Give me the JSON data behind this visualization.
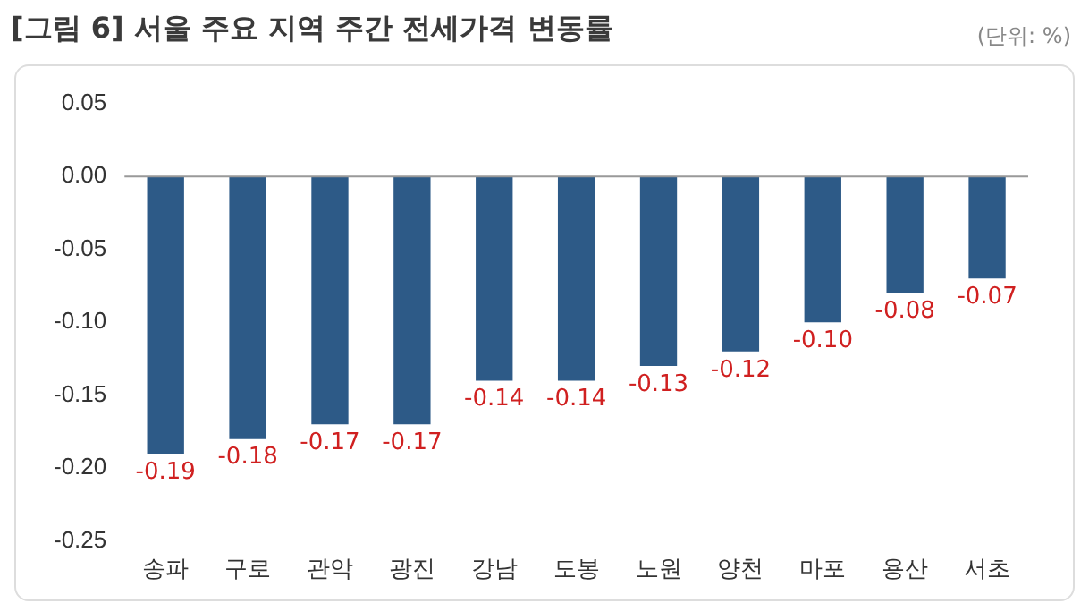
{
  "chart_data": {
    "type": "bar",
    "title": "[그림 6] 서울 주요 지역 주간 전세가격 변동률",
    "annotations": [
      "(단위: %)"
    ],
    "categories": [
      "송파",
      "구로",
      "관악",
      "광진",
      "강남",
      "도봉",
      "노원",
      "양천",
      "마포",
      "용산",
      "서초"
    ],
    "values": [
      -0.19,
      -0.18,
      -0.17,
      -0.17,
      -0.14,
      -0.14,
      -0.13,
      -0.12,
      -0.1,
      -0.08,
      -0.07
    ],
    "value_labels": [
      "-0.19",
      "-0.18",
      "-0.17",
      "-0.17",
      "-0.14",
      "-0.14",
      "-0.13",
      "-0.12",
      "-0.10",
      "-0.08",
      "-0.07"
    ],
    "color": "#2d5a87",
    "ylim": [
      -0.25,
      0.05
    ],
    "yticks": [
      {
        "value": 0.05,
        "label": "0.05"
      },
      {
        "value": 0,
        "label": "0.00"
      },
      {
        "value": -0.05,
        "label": "-0.05"
      },
      {
        "value": -0.1,
        "label": "-0.10"
      },
      {
        "value": -0.15,
        "label": "-0.15"
      },
      {
        "value": -0.2,
        "label": "-0.20"
      },
      {
        "value": -0.25,
        "label": "-0.25"
      }
    ],
    "ref_lines": [
      {
        "axis": "y",
        "value": 0,
        "color": "#999999"
      }
    ],
    "grid": false,
    "legend": false
  }
}
